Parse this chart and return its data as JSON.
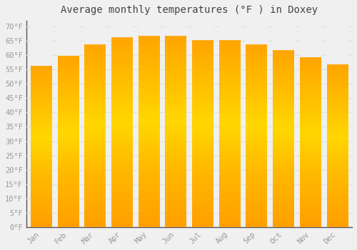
{
  "title": "Average monthly temperatures (°F ) in Doxey",
  "months": [
    "Jan",
    "Feb",
    "Mar",
    "Apr",
    "May",
    "Jun",
    "Jul",
    "Aug",
    "Sep",
    "Oct",
    "Nov",
    "Dec"
  ],
  "values": [
    56.5,
    60.0,
    64.0,
    66.5,
    67.0,
    67.0,
    65.5,
    65.5,
    64.0,
    62.0,
    59.5,
    57.0
  ],
  "bar_color": "#FFA500",
  "bar_gradient_light": "#FFD700",
  "background_color": "#F0F0F0",
  "grid_color": "#E0E0E0",
  "yticks": [
    0,
    5,
    10,
    15,
    20,
    25,
    30,
    35,
    40,
    45,
    50,
    55,
    60,
    65,
    70
  ],
  "ylim": [
    0,
    72
  ],
  "tick_label_color": "#999999",
  "title_color": "#444444",
  "title_fontsize": 10,
  "tick_fontsize": 7.5
}
